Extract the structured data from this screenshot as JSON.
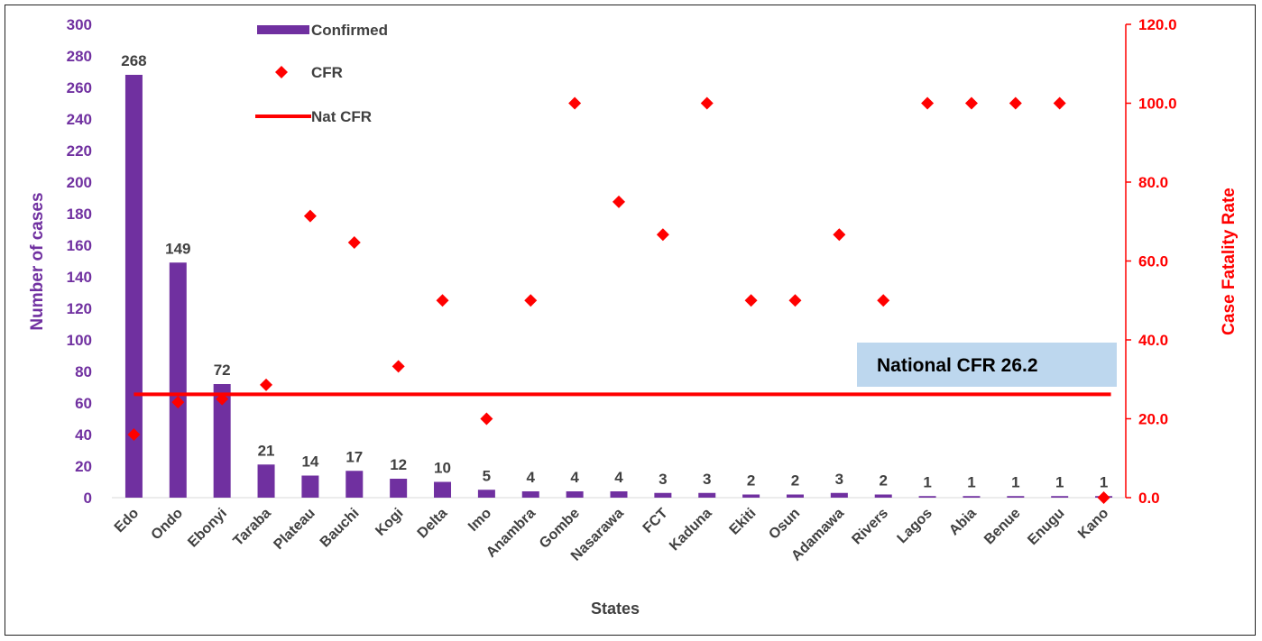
{
  "chart_data": {
    "type": "bar",
    "xlabel": "States",
    "ylabel": "Number of cases",
    "y2label": "Case Fatality Rate",
    "ylim": [
      0,
      300
    ],
    "y2lim": [
      0,
      120
    ],
    "yticks": [
      "0",
      "20",
      "40",
      "60",
      "80",
      "100",
      "120",
      "140",
      "160",
      "180",
      "200",
      "220",
      "240",
      "260",
      "280",
      "300"
    ],
    "y2ticks": [
      "0.0",
      "20.0",
      "40.0",
      "60.0",
      "80.0",
      "100.0",
      "120.0"
    ],
    "categories": [
      "Edo",
      "Ondo",
      "Ebonyi",
      "Taraba",
      "Plateau",
      "Bauchi",
      "Kogi",
      "Delta",
      "Imo",
      "Anambra",
      "Gombe",
      "Nasarawa",
      "FCT",
      "Kaduna",
      "Ekiti",
      "Osun",
      "Adamawa",
      "Rivers",
      "Lagos",
      "Abia",
      "Benue",
      "Enugu",
      "Kano"
    ],
    "series": [
      {
        "name": "Confirmed",
        "type": "bar",
        "axis": "left",
        "color": "#7030a0",
        "values": [
          268,
          149,
          72,
          21,
          14,
          17,
          12,
          10,
          5,
          4,
          4,
          4,
          3,
          3,
          2,
          2,
          3,
          2,
          1,
          1,
          1,
          1,
          1
        ]
      },
      {
        "name": "CFR",
        "type": "scatter",
        "axis": "right",
        "color": "#ff0000",
        "marker": "diamond",
        "values": [
          16.0,
          24.2,
          25.0,
          28.6,
          71.4,
          64.7,
          33.3,
          50.0,
          20.0,
          50.0,
          100.0,
          75.0,
          66.7,
          100.0,
          50.0,
          50.0,
          66.7,
          50.0,
          100.0,
          100.0,
          100.0,
          100.0,
          0.0
        ]
      },
      {
        "name": "Nat CFR",
        "type": "line",
        "axis": "right",
        "color": "#ff0000",
        "value": 26.2
      }
    ],
    "annotation": "National CFR 26.2",
    "legend": "top-left",
    "grid": false
  }
}
